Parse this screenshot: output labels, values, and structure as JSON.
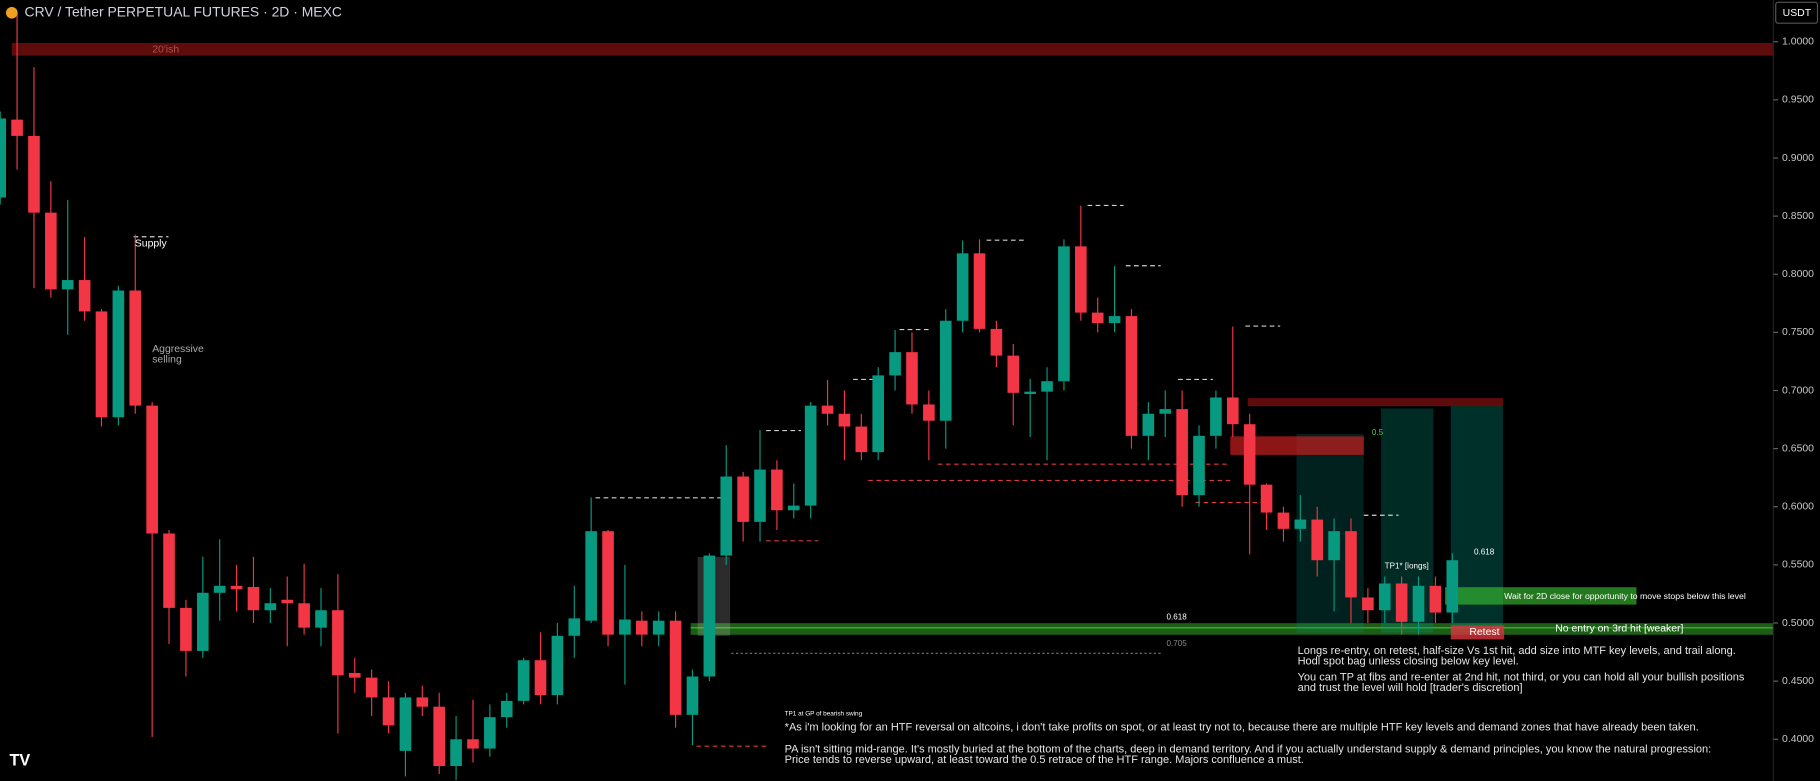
{
  "chart_data": {
    "type": "candlestick",
    "title": "CRV / Tether PERPETUAL FUTURES · 2D · MEXC",
    "currency": "USDT",
    "colors": {
      "up": "#089981",
      "down": "#f23645"
    },
    "ylim": [
      0.3641,
      1.0359
    ],
    "yticks": [
      {
        "value": 1.0,
        "label": "1.0000"
      },
      {
        "value": 0.95,
        "label": "0.9500"
      },
      {
        "value": 0.9,
        "label": "0.9000"
      },
      {
        "value": 0.85,
        "label": "0.8500"
      },
      {
        "value": 0.8,
        "label": "0.8000"
      },
      {
        "value": 0.75,
        "label": "0.7500"
      },
      {
        "value": 0.7,
        "label": "0.7000"
      },
      {
        "value": 0.65,
        "label": "0.6500"
      },
      {
        "value": 0.6,
        "label": "0.6000"
      },
      {
        "value": 0.55,
        "label": "0.5500"
      },
      {
        "value": 0.5,
        "label": "0.5000"
      },
      {
        "value": 0.45,
        "label": "0.4500"
      },
      {
        "value": 0.4,
        "label": "0.4000"
      }
    ],
    "candles": {
      "open": [
        0.866,
        0.933,
        0.919,
        0.853,
        0.787,
        0.795,
        0.768,
        0.677,
        0.786,
        0.687,
        0.577,
        0.513,
        0.476,
        0.526,
        0.532,
        0.531,
        0.511,
        0.52,
        0.517,
        0.496,
        0.511,
        0.457,
        0.453,
        0.436,
        0.39,
        0.436,
        0.428,
        0.377,
        0.4,
        0.392,
        0.419,
        0.433,
        0.468,
        0.438,
        0.489,
        0.502,
        0.579,
        0.49,
        0.502,
        0.49,
        0.502,
        0.421,
        0.454,
        0.558,
        0.626,
        0.587,
        0.632,
        0.597,
        0.601,
        0.687,
        0.68,
        0.669,
        0.647,
        0.713,
        0.733,
        0.688,
        0.674,
        0.76,
        0.818,
        0.753,
        0.73,
        0.697,
        0.699,
        0.708,
        0.824,
        0.767,
        0.758,
        0.764,
        0.661,
        0.68,
        0.684,
        0.61,
        0.661,
        0.694,
        0.671,
        0.619,
        0.595,
        0.581,
        0.589,
        0.554,
        0.579,
        0.522,
        0.511,
        0.534,
        0.501,
        0.532,
        0.509
      ],
      "high": [
        0.94,
        1.026,
        0.978,
        0.88,
        0.864,
        0.832,
        0.77,
        0.79,
        0.834,
        0.69,
        0.58,
        0.52,
        0.557,
        0.572,
        0.55,
        0.557,
        0.53,
        0.54,
        0.551,
        0.53,
        0.542,
        0.47,
        0.46,
        0.45,
        0.44,
        0.446,
        0.44,
        0.42,
        0.434,
        0.43,
        0.44,
        0.47,
        0.492,
        0.5,
        0.532,
        0.608,
        0.58,
        0.55,
        0.51,
        0.51,
        0.51,
        0.46,
        0.56,
        0.653,
        0.63,
        0.666,
        0.64,
        0.62,
        0.69,
        0.709,
        0.7,
        0.68,
        0.72,
        0.752,
        0.75,
        0.7,
        0.77,
        0.829,
        0.83,
        0.76,
        0.74,
        0.71,
        0.72,
        0.83,
        0.859,
        0.78,
        0.807,
        0.77,
        0.69,
        0.7,
        0.7,
        0.67,
        0.7,
        0.755,
        0.68,
        0.62,
        0.6,
        0.61,
        0.6,
        0.59,
        0.59,
        0.53,
        0.54,
        0.54,
        0.54,
        0.54,
        0.56
      ],
      "low": [
        0.86,
        0.89,
        0.788,
        0.78,
        0.748,
        0.76,
        0.669,
        0.67,
        0.68,
        0.402,
        0.482,
        0.454,
        0.47,
        0.502,
        0.51,
        0.5,
        0.5,
        0.48,
        0.49,
        0.48,
        0.405,
        0.44,
        0.42,
        0.405,
        0.368,
        0.42,
        0.37,
        0.365,
        0.38,
        0.385,
        0.41,
        0.43,
        0.43,
        0.43,
        0.47,
        0.5,
        0.48,
        0.447,
        0.48,
        0.48,
        0.41,
        0.395,
        0.45,
        0.55,
        0.57,
        0.57,
        0.58,
        0.59,
        0.59,
        0.67,
        0.64,
        0.64,
        0.64,
        0.7,
        0.68,
        0.64,
        0.65,
        0.75,
        0.75,
        0.72,
        0.67,
        0.66,
        0.64,
        0.7,
        0.76,
        0.75,
        0.75,
        0.65,
        0.64,
        0.66,
        0.6,
        0.6,
        0.65,
        0.66,
        0.559,
        0.58,
        0.57,
        0.57,
        0.54,
        0.51,
        0.5,
        0.5,
        0.5,
        0.49,
        0.49,
        0.5,
        0.5
      ],
      "close": [
        0.934,
        0.919,
        0.853,
        0.787,
        0.795,
        0.768,
        0.677,
        0.786,
        0.687,
        0.577,
        0.513,
        0.476,
        0.526,
        0.532,
        0.529,
        0.511,
        0.517,
        0.517,
        0.496,
        0.511,
        0.455,
        0.453,
        0.436,
        0.412,
        0.436,
        0.428,
        0.377,
        0.4,
        0.392,
        0.419,
        0.433,
        0.468,
        0.438,
        0.489,
        0.504,
        0.579,
        0.49,
        0.503,
        0.49,
        0.502,
        0.421,
        0.454,
        0.558,
        0.626,
        0.587,
        0.632,
        0.597,
        0.601,
        0.687,
        0.68,
        0.669,
        0.647,
        0.713,
        0.733,
        0.688,
        0.674,
        0.76,
        0.818,
        0.753,
        0.73,
        0.698,
        0.699,
        0.708,
        0.824,
        0.767,
        0.758,
        0.764,
        0.661,
        0.68,
        0.684,
        0.61,
        0.661,
        0.694,
        0.671,
        0.619,
        0.595,
        0.581,
        0.589,
        0.554,
        0.579,
        0.522,
        0.511,
        0.534,
        0.501,
        0.532,
        0.509,
        0.554
      ]
    },
    "annotations": {
      "twenty_ish": "20'ish",
      "supply": "Supply",
      "aggressive": [
        "Aggressive",
        "selling"
      ],
      "fib_618_left": "0.618",
      "fib_705": "0.705",
      "fib_05": "0.5",
      "fib_618_right": "0.618",
      "tp1_longs": "TP1* [longs]",
      "wait": "Wait for 2D close for opportunity to move stops below this level",
      "no_entry": "No entry on 3rd hit [weaker]",
      "retest": "Retest",
      "longs_note": [
        "Longs re-entry, on retest, half-size Vs 1st hit, add size into MTF key levels, and trail along.",
        "Hodl spot bag unless closing below key level."
      ],
      "tp_note": [
        "You can TP at fibs and re-enter at 2nd hit, not third, or you can hold all your bullish positions",
        "and trust the level will hold [trader's discretion]"
      ],
      "tp1_gp": "TP1 at GP of bearish swing",
      "htf_note": "*As i'm looking for an HTF reversal on altcoins, i don't take profits on spot, or at least try not to, because there are multiple HTF key levels and demand zones that have already been taken.",
      "pa_note": [
        "PA isn't sitting mid-range. It's mostly buried at the bottom of the charts, deep in demand territory. And if you actually understand supply & demand principles, you know the natural progression:",
        "Price tends to reverse upward, at least toward the 0.5 retrace of the HTF range. Majors confluence a must."
      ]
    }
  }
}
